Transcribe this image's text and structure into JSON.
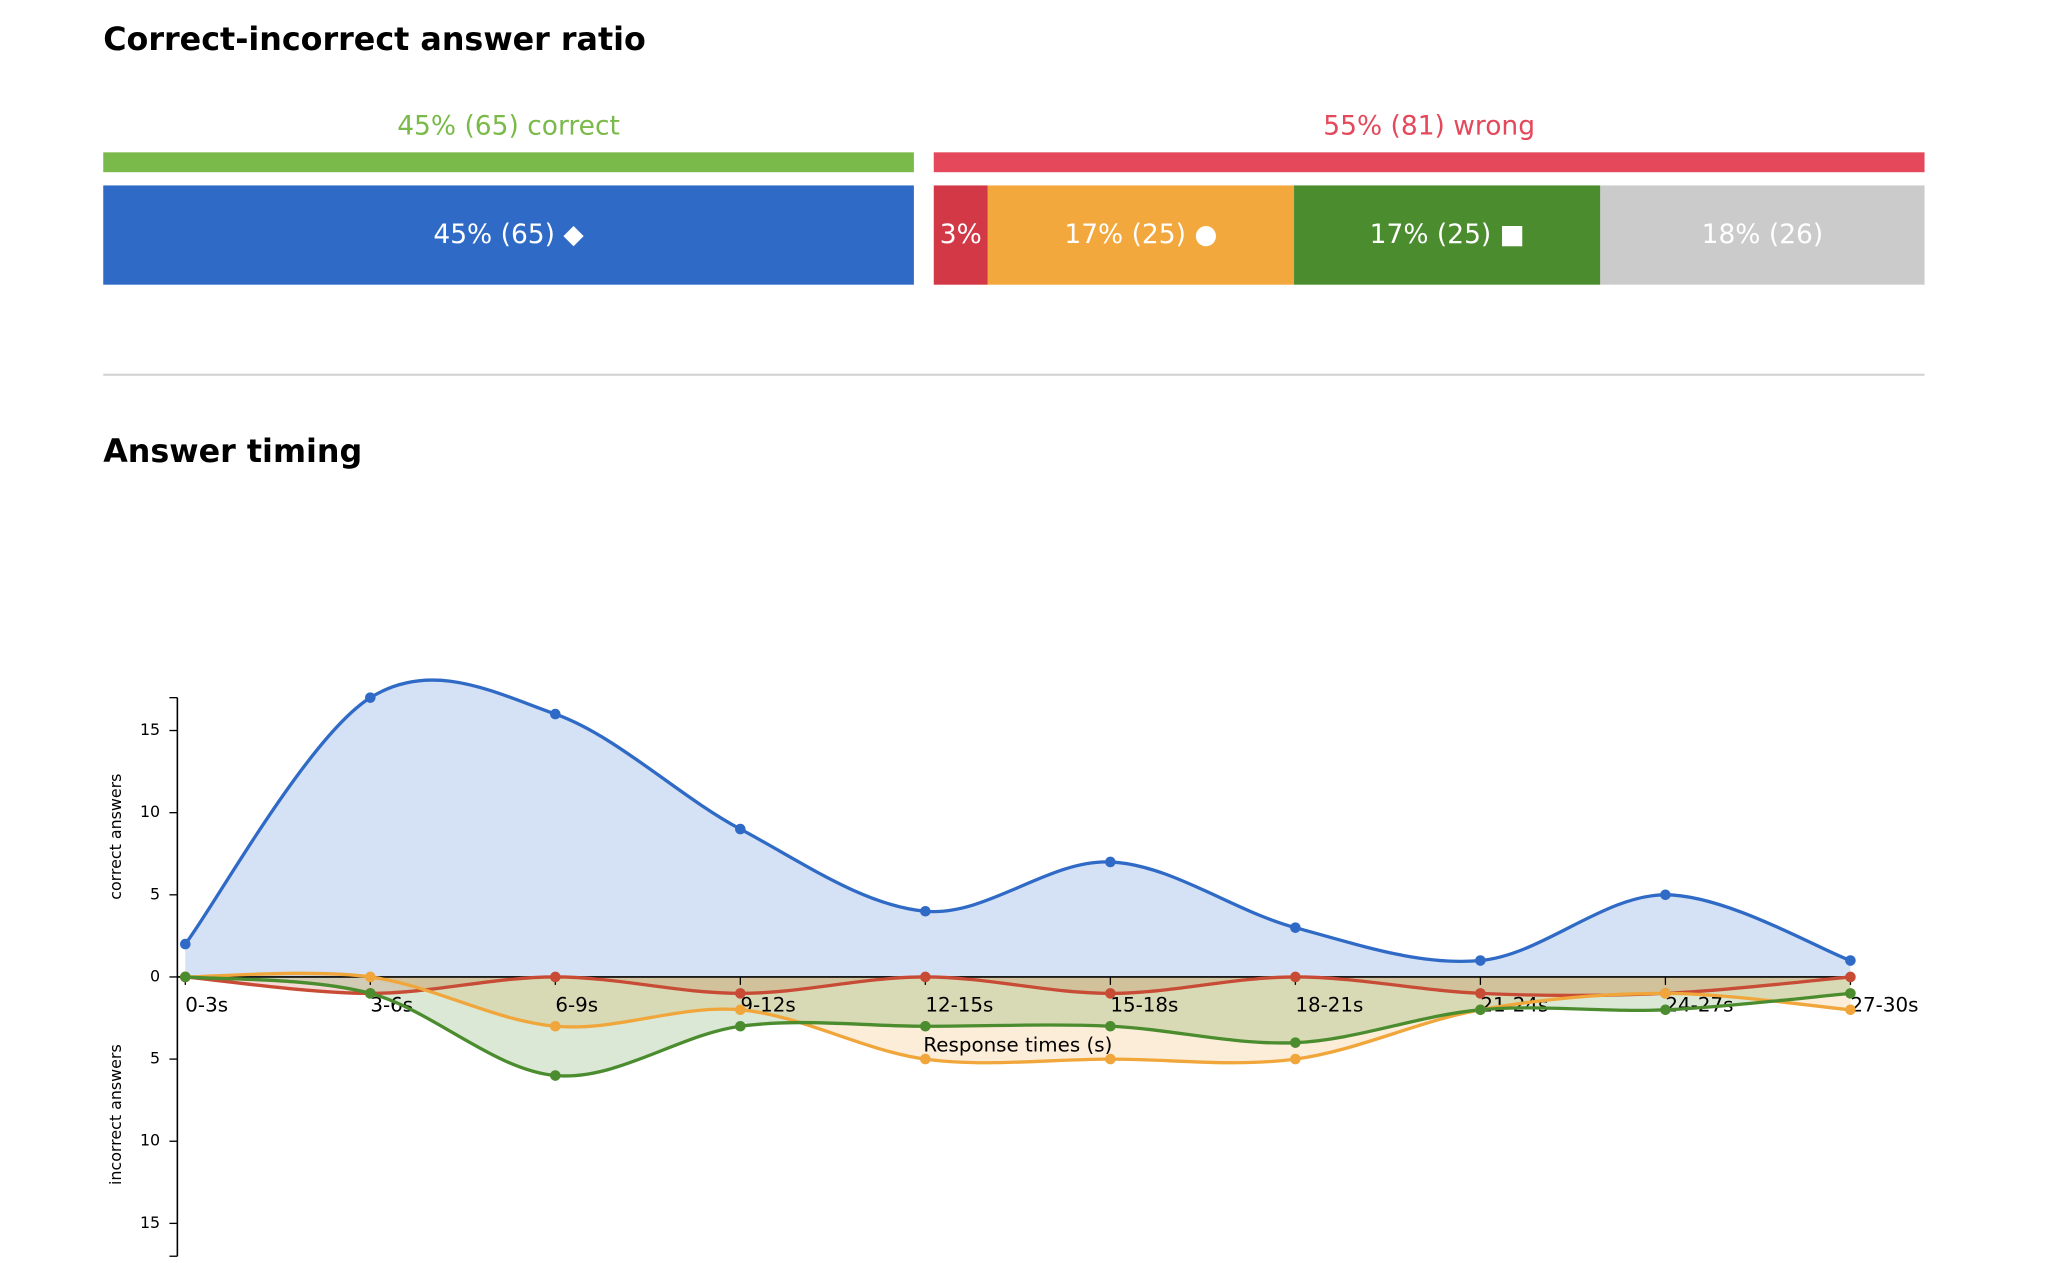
{
  "chart_data": [
    {
      "type": "ratio-bar",
      "title": "Correct-incorrect answer ratio",
      "groups": [
        {
          "label": "45% (65) correct",
          "value": 45,
          "color": "#7aba4a",
          "segments": {
            "values": [
              45
            ],
            "value_labels": [
              "45% (65) ◆"
            ],
            "colors": [
              "#2f6ac6"
            ]
          }
        },
        {
          "label": "55% (81) wrong",
          "value": 55,
          "color": "#e4485a",
          "segments": {
            "values": [
              3,
              17,
              17,
              18
            ],
            "value_labels": [
              "3%",
              "17% (25) ●",
              "17% (25) ■",
              "18% (26)"
            ],
            "colors": [
              "#d23845",
              "#f2a83c",
              "#4a8c2e",
              "#cbcbcb"
            ]
          }
        }
      ]
    },
    {
      "type": "diverging-area",
      "title": "Answer timing",
      "x_label": "Response times (s)",
      "y_label": "correct answers",
      "y2_label": "incorrect answers",
      "categories": [
        "0-3s",
        "3-6s",
        "6-9s",
        "9-12s",
        "12-15s",
        "15-18s",
        "18-21s",
        "21-24s",
        "24-27s",
        "27-30s"
      ],
      "ylim": [
        0,
        17
      ],
      "yticks": [
        0,
        5,
        10,
        15
      ],
      "y2lim": [
        0,
        17
      ],
      "y2ticks": [
        5,
        10,
        15
      ],
      "series": [
        {
          "color": "#c84b35",
          "axis": "y2",
          "values": [
            0,
            1,
            0,
            1,
            0,
            1,
            0,
            1,
            1,
            0
          ]
        },
        {
          "color": "#f0a63a",
          "axis": "y2",
          "values": [
            0,
            0,
            3,
            2,
            5,
            5,
            5,
            2,
            1,
            2
          ]
        },
        {
          "color": "#4a8c2e",
          "axis": "y2",
          "values": [
            0,
            1,
            6,
            3,
            3,
            3,
            4,
            2,
            2,
            1
          ]
        },
        {
          "color": "#2f6ac6",
          "values": [
            2,
            17,
            16,
            9,
            4,
            7,
            3,
            1,
            5,
            1
          ]
        }
      ]
    }
  ]
}
